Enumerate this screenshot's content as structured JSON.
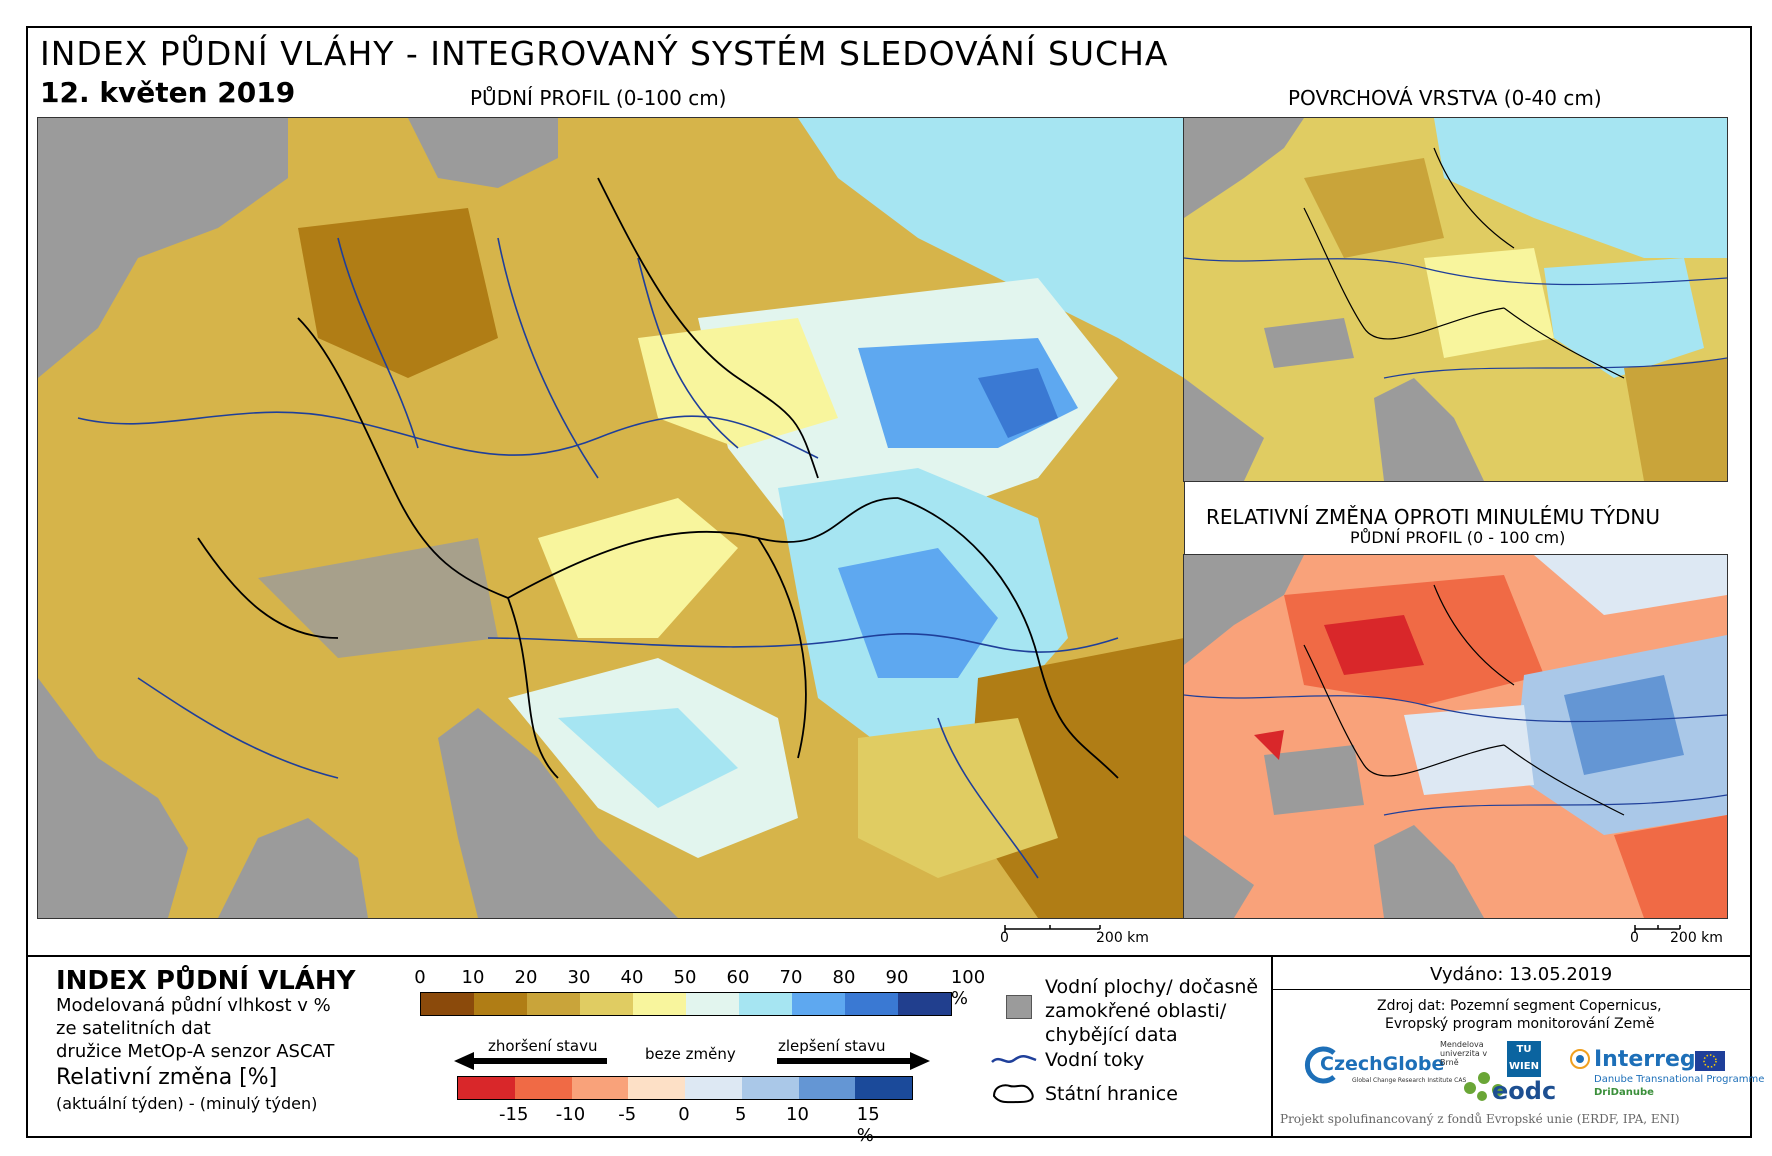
{
  "title": "INDEX PŮDNÍ VLÁHY - INTEGROVANÝ SYSTÉM SLEDOVÁNÍ SUCHA",
  "date": "12. květen 2019",
  "maps": {
    "main_label": "PŮDNÍ PROFIL (0-100 cm)",
    "surface_label": "POVRCHOVÁ VRSTVA (0-40 cm)",
    "change_label": "RELATIVNÍ ZMĚNA OPROTI MINULÉMU TÝDNU",
    "change_sublabel": "PŮDNÍ PROFIL (0 - 100 cm)",
    "scale_main": {
      "zero": "0",
      "end": "200 km"
    },
    "scale_small": {
      "zero": "0",
      "end": "200 km"
    }
  },
  "legend": {
    "heading": "INDEX PŮDNÍ VLÁHY",
    "desc_line1": "Modelovaná půdní vlhkost v %",
    "desc_line2": "ze satelitních dat",
    "desc_line3": "družice MetOp-A senzor ASCAT",
    "change_heading": "Relativní změna [%]",
    "change_desc": "(aktuální týden) - (minulý týden)",
    "index_ticks": [
      "0",
      "10",
      "20",
      "30",
      "40",
      "50",
      "60",
      "70",
      "80",
      "90",
      "100 %"
    ],
    "index_colors": [
      "#8b4a0b",
      "#b07d15",
      "#c9a43a",
      "#e0cc62",
      "#f8f59d",
      "#e2f5ee",
      "#a6e5f2",
      "#5ea8f0",
      "#3a79d3",
      "#213f8e"
    ],
    "arrow_left": "zhoršení stavu",
    "arrow_mid": "beze změny",
    "arrow_right": "zlepšení stavu",
    "change_ticks": [
      "-15",
      "-10",
      "-5",
      "0",
      "5",
      "10",
      "15 %"
    ],
    "change_colors": [
      "#d9272a",
      "#f06a45",
      "#f9a27a",
      "#fde0c6",
      "#dde8f3",
      "#aac8e8",
      "#6496d4",
      "#1b4a9a"
    ],
    "water_label_1": "Vodní plochy/ dočasně",
    "water_label_2": "zamokřené oblasti/",
    "water_label_3": "chybějící data",
    "rivers_label": "Vodní toky",
    "borders_label": "Státní hranice"
  },
  "issued": "Vydáno: 13.05.2019",
  "source_line1": "Zdroj dat: Pozemní segment Copernicus,",
  "source_line2": "Evropský program monitorování Země",
  "logos": {
    "czechglobe": "CzechGlobe",
    "czechglobe_sub": "Global Change Research Institute CAS",
    "mendel": "Mendelova univerzita v Brně",
    "tu": "TU WIEN",
    "eodc": "eodc",
    "interreg": "Interreg",
    "interreg_sub1": "Danube Transnational Programme",
    "interreg_sub2": "DriDanube"
  },
  "funding": "Projekt spolufinancovaný z fondů Evropské unie (ERDF, IPA, ENI)"
}
